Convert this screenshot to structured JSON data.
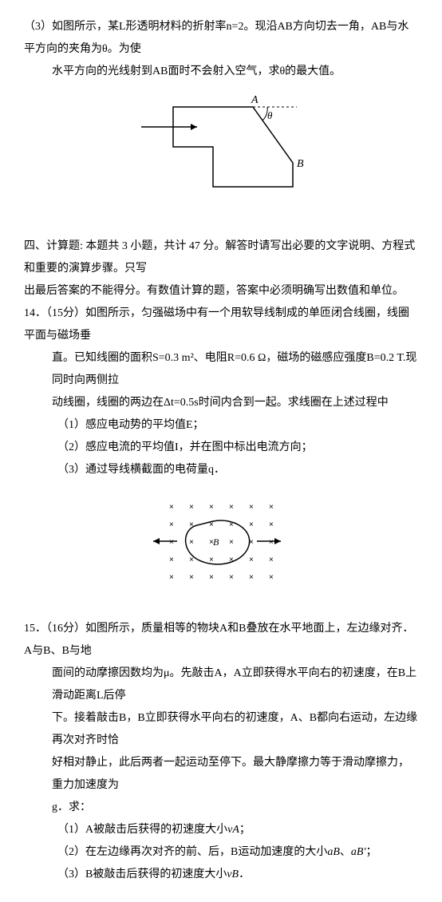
{
  "q13_3": {
    "line1": "（3）如图所示，某L形透明材料的折射率n=2。现沿AB方向切去一角，AB与水平方向的夹角为θ。为使",
    "line2": "水平方向的光线射到AB面时不会射入空气，求θ的最大值。",
    "fig": {
      "stroke": "#000000",
      "stroke_width": 1.5,
      "label_A": "A",
      "label_B": "B",
      "label_theta": "θ"
    }
  },
  "section4": {
    "title": "四、计算题: 本题共 3 小题，共计 47 分。解答时请写出必要的文字说明、方程式和重要的演算步骤。只写",
    "title2": "出最后答案的不能得分。有数值计算的题，答案中必须明确写出数值和单位。"
  },
  "q14": {
    "line1": "14．（15分）如图所示，匀强磁场中有一个用软导线制成的单匝闭合线圈，线圈平面与磁场垂",
    "line2": "直。已知线圈的面积S=0.3 m²、电阻R=0.6 Ω，磁场的磁感应强度B=0.2 T.现同时向两侧拉",
    "line3": "动线圈，线圈的两边在Δt=0.5s时间内合到一起。求线圈在上述过程中",
    "sub1": "（1）感应电动势的平均值E；",
    "sub2": "（2）感应电流的平均值I，并在图中标出电流方向；",
    "sub3": "（3）通过导线横截面的电荷量q．",
    "fig": {
      "cross_color": "#000000",
      "loop_color": "#000000",
      "label_B": "B"
    }
  },
  "q15": {
    "line1": "15．（16分）如图所示，质量相等的物块A和B叠放在水平地面上，左边缘对齐．A与B、B与地",
    "line2": "面间的动摩擦因数均为μ。先敲击A，A立即获得水平向右的初速度，在B上滑动距离L后停",
    "line3": "下。接着敲击B，B立即获得水平向右的初速度，A、B都向右运动，左边缘再次对齐时恰",
    "line4": "好相对静止，此后两者一起运动至停下。最大静摩擦力等于滑动摩擦力，重力加速度为",
    "line5": "g．求：",
    "sub1_a": "（1）A被敲击后获得的初速度大小",
    "sub1_b": "vA",
    "sub1_c": "；",
    "sub2_a": "（2）在左边缘再次对齐的前、后，B运动加速度的大小",
    "sub2_b": "aB",
    "sub2_c": "、",
    "sub2_d": "aB'",
    "sub2_e": "；",
    "sub3_a": "（3）B被敲击后获得的初速度大小",
    "sub3_b": "vB",
    "sub3_c": "．"
  }
}
